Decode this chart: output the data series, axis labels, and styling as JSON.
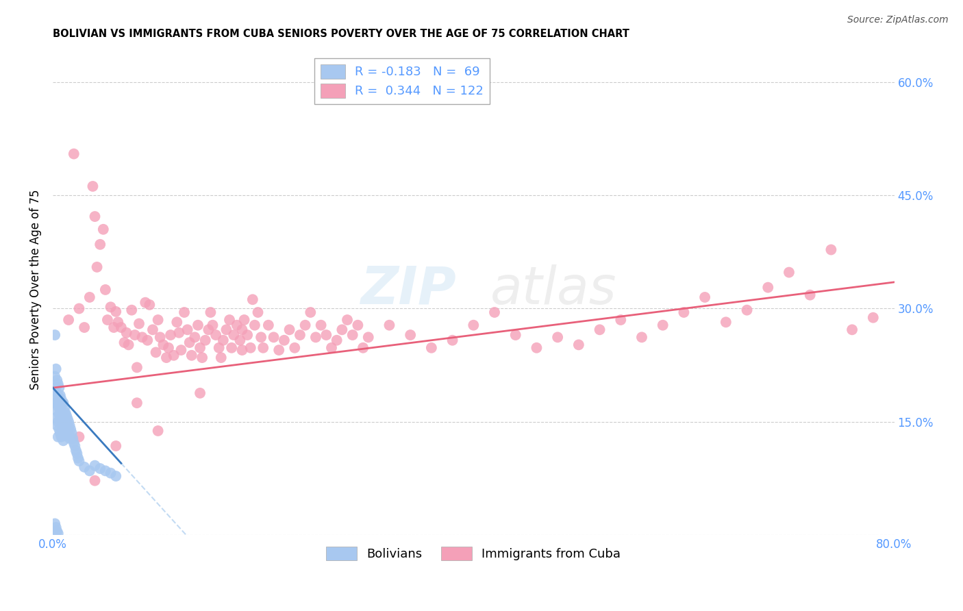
{
  "title": "BOLIVIAN VS IMMIGRANTS FROM CUBA SENIORS POVERTY OVER THE AGE OF 75 CORRELATION CHART",
  "source": "Source: ZipAtlas.com",
  "ylabel": "Seniors Poverty Over the Age of 75",
  "xlabel": "",
  "xlim": [
    0.0,
    0.8
  ],
  "ylim": [
    0.0,
    0.65
  ],
  "yticks": [
    0.0,
    0.15,
    0.3,
    0.45,
    0.6
  ],
  "xticks": [
    0.0,
    0.2,
    0.4,
    0.6,
    0.8
  ],
  "bolivian_R": -0.183,
  "bolivian_N": 69,
  "cuba_R": 0.344,
  "cuba_N": 122,
  "bolivian_color": "#a8c8f0",
  "cuba_color": "#f4a0b8",
  "bolivian_line_color": "#3a7abf",
  "cuba_line_color": "#e8607a",
  "title_fontsize": 10.5,
  "source_fontsize": 10,
  "legend_fontsize": 13,
  "axis_label_fontsize": 12,
  "tick_fontsize": 12,
  "right_tick_color": "#5599ff",
  "blue_tick_color": "#5599ff",
  "bolivian_x": [
    0.002,
    0.002,
    0.002,
    0.003,
    0.003,
    0.003,
    0.003,
    0.004,
    0.004,
    0.004,
    0.004,
    0.005,
    0.005,
    0.005,
    0.005,
    0.005,
    0.006,
    0.006,
    0.006,
    0.006,
    0.007,
    0.007,
    0.007,
    0.007,
    0.008,
    0.008,
    0.008,
    0.008,
    0.009,
    0.009,
    0.009,
    0.01,
    0.01,
    0.01,
    0.01,
    0.011,
    0.011,
    0.011,
    0.012,
    0.012,
    0.012,
    0.013,
    0.013,
    0.014,
    0.014,
    0.015,
    0.015,
    0.016,
    0.016,
    0.017,
    0.018,
    0.019,
    0.02,
    0.021,
    0.022,
    0.023,
    0.024,
    0.025,
    0.03,
    0.035,
    0.04,
    0.045,
    0.05,
    0.055,
    0.06,
    0.002,
    0.003,
    0.004,
    0.005
  ],
  "bolivian_y": [
    0.265,
    0.21,
    0.175,
    0.22,
    0.195,
    0.175,
    0.155,
    0.205,
    0.185,
    0.165,
    0.145,
    0.2,
    0.185,
    0.17,
    0.15,
    0.13,
    0.195,
    0.18,
    0.16,
    0.14,
    0.185,
    0.17,
    0.155,
    0.135,
    0.18,
    0.165,
    0.15,
    0.13,
    0.175,
    0.158,
    0.14,
    0.175,
    0.16,
    0.145,
    0.125,
    0.168,
    0.155,
    0.138,
    0.162,
    0.148,
    0.132,
    0.158,
    0.142,
    0.154,
    0.138,
    0.15,
    0.132,
    0.145,
    0.128,
    0.14,
    0.135,
    0.128,
    0.122,
    0.118,
    0.112,
    0.108,
    0.102,
    0.098,
    0.09,
    0.085,
    0.092,
    0.088,
    0.085,
    0.082,
    0.078,
    0.015,
    0.01,
    0.005,
    0.002
  ],
  "cuba_x": [
    0.015,
    0.02,
    0.025,
    0.03,
    0.035,
    0.038,
    0.04,
    0.042,
    0.045,
    0.048,
    0.05,
    0.052,
    0.055,
    0.058,
    0.06,
    0.062,
    0.065,
    0.068,
    0.07,
    0.072,
    0.075,
    0.078,
    0.08,
    0.082,
    0.085,
    0.088,
    0.09,
    0.092,
    0.095,
    0.098,
    0.1,
    0.102,
    0.105,
    0.108,
    0.11,
    0.112,
    0.115,
    0.118,
    0.12,
    0.122,
    0.125,
    0.128,
    0.13,
    0.132,
    0.135,
    0.138,
    0.14,
    0.142,
    0.145,
    0.148,
    0.15,
    0.152,
    0.155,
    0.158,
    0.16,
    0.162,
    0.165,
    0.168,
    0.17,
    0.172,
    0.175,
    0.178,
    0.18,
    0.182,
    0.185,
    0.188,
    0.19,
    0.192,
    0.195,
    0.198,
    0.2,
    0.205,
    0.21,
    0.215,
    0.22,
    0.225,
    0.23,
    0.235,
    0.24,
    0.245,
    0.25,
    0.255,
    0.26,
    0.265,
    0.27,
    0.275,
    0.28,
    0.285,
    0.29,
    0.295,
    0.3,
    0.32,
    0.34,
    0.36,
    0.38,
    0.4,
    0.42,
    0.44,
    0.46,
    0.48,
    0.5,
    0.52,
    0.54,
    0.56,
    0.58,
    0.6,
    0.62,
    0.64,
    0.66,
    0.68,
    0.7,
    0.72,
    0.74,
    0.76,
    0.78,
    0.025,
    0.04,
    0.06,
    0.08,
    0.1,
    0.14,
    0.18
  ],
  "cuba_y": [
    0.285,
    0.505,
    0.3,
    0.275,
    0.315,
    0.462,
    0.422,
    0.355,
    0.385,
    0.405,
    0.325,
    0.285,
    0.302,
    0.275,
    0.296,
    0.282,
    0.275,
    0.255,
    0.268,
    0.252,
    0.298,
    0.265,
    0.222,
    0.28,
    0.262,
    0.308,
    0.258,
    0.305,
    0.272,
    0.242,
    0.285,
    0.262,
    0.252,
    0.235,
    0.248,
    0.265,
    0.238,
    0.282,
    0.268,
    0.245,
    0.295,
    0.272,
    0.255,
    0.238,
    0.262,
    0.278,
    0.248,
    0.235,
    0.258,
    0.272,
    0.295,
    0.278,
    0.265,
    0.248,
    0.235,
    0.258,
    0.272,
    0.285,
    0.248,
    0.265,
    0.278,
    0.258,
    0.272,
    0.285,
    0.265,
    0.248,
    0.312,
    0.278,
    0.295,
    0.262,
    0.248,
    0.278,
    0.262,
    0.245,
    0.258,
    0.272,
    0.248,
    0.265,
    0.278,
    0.295,
    0.262,
    0.278,
    0.265,
    0.248,
    0.258,
    0.272,
    0.285,
    0.265,
    0.278,
    0.248,
    0.262,
    0.278,
    0.265,
    0.248,
    0.258,
    0.278,
    0.295,
    0.265,
    0.248,
    0.262,
    0.252,
    0.272,
    0.285,
    0.262,
    0.278,
    0.295,
    0.315,
    0.282,
    0.298,
    0.328,
    0.348,
    0.318,
    0.378,
    0.272,
    0.288,
    0.13,
    0.072,
    0.118,
    0.175,
    0.138,
    0.188,
    0.245
  ]
}
